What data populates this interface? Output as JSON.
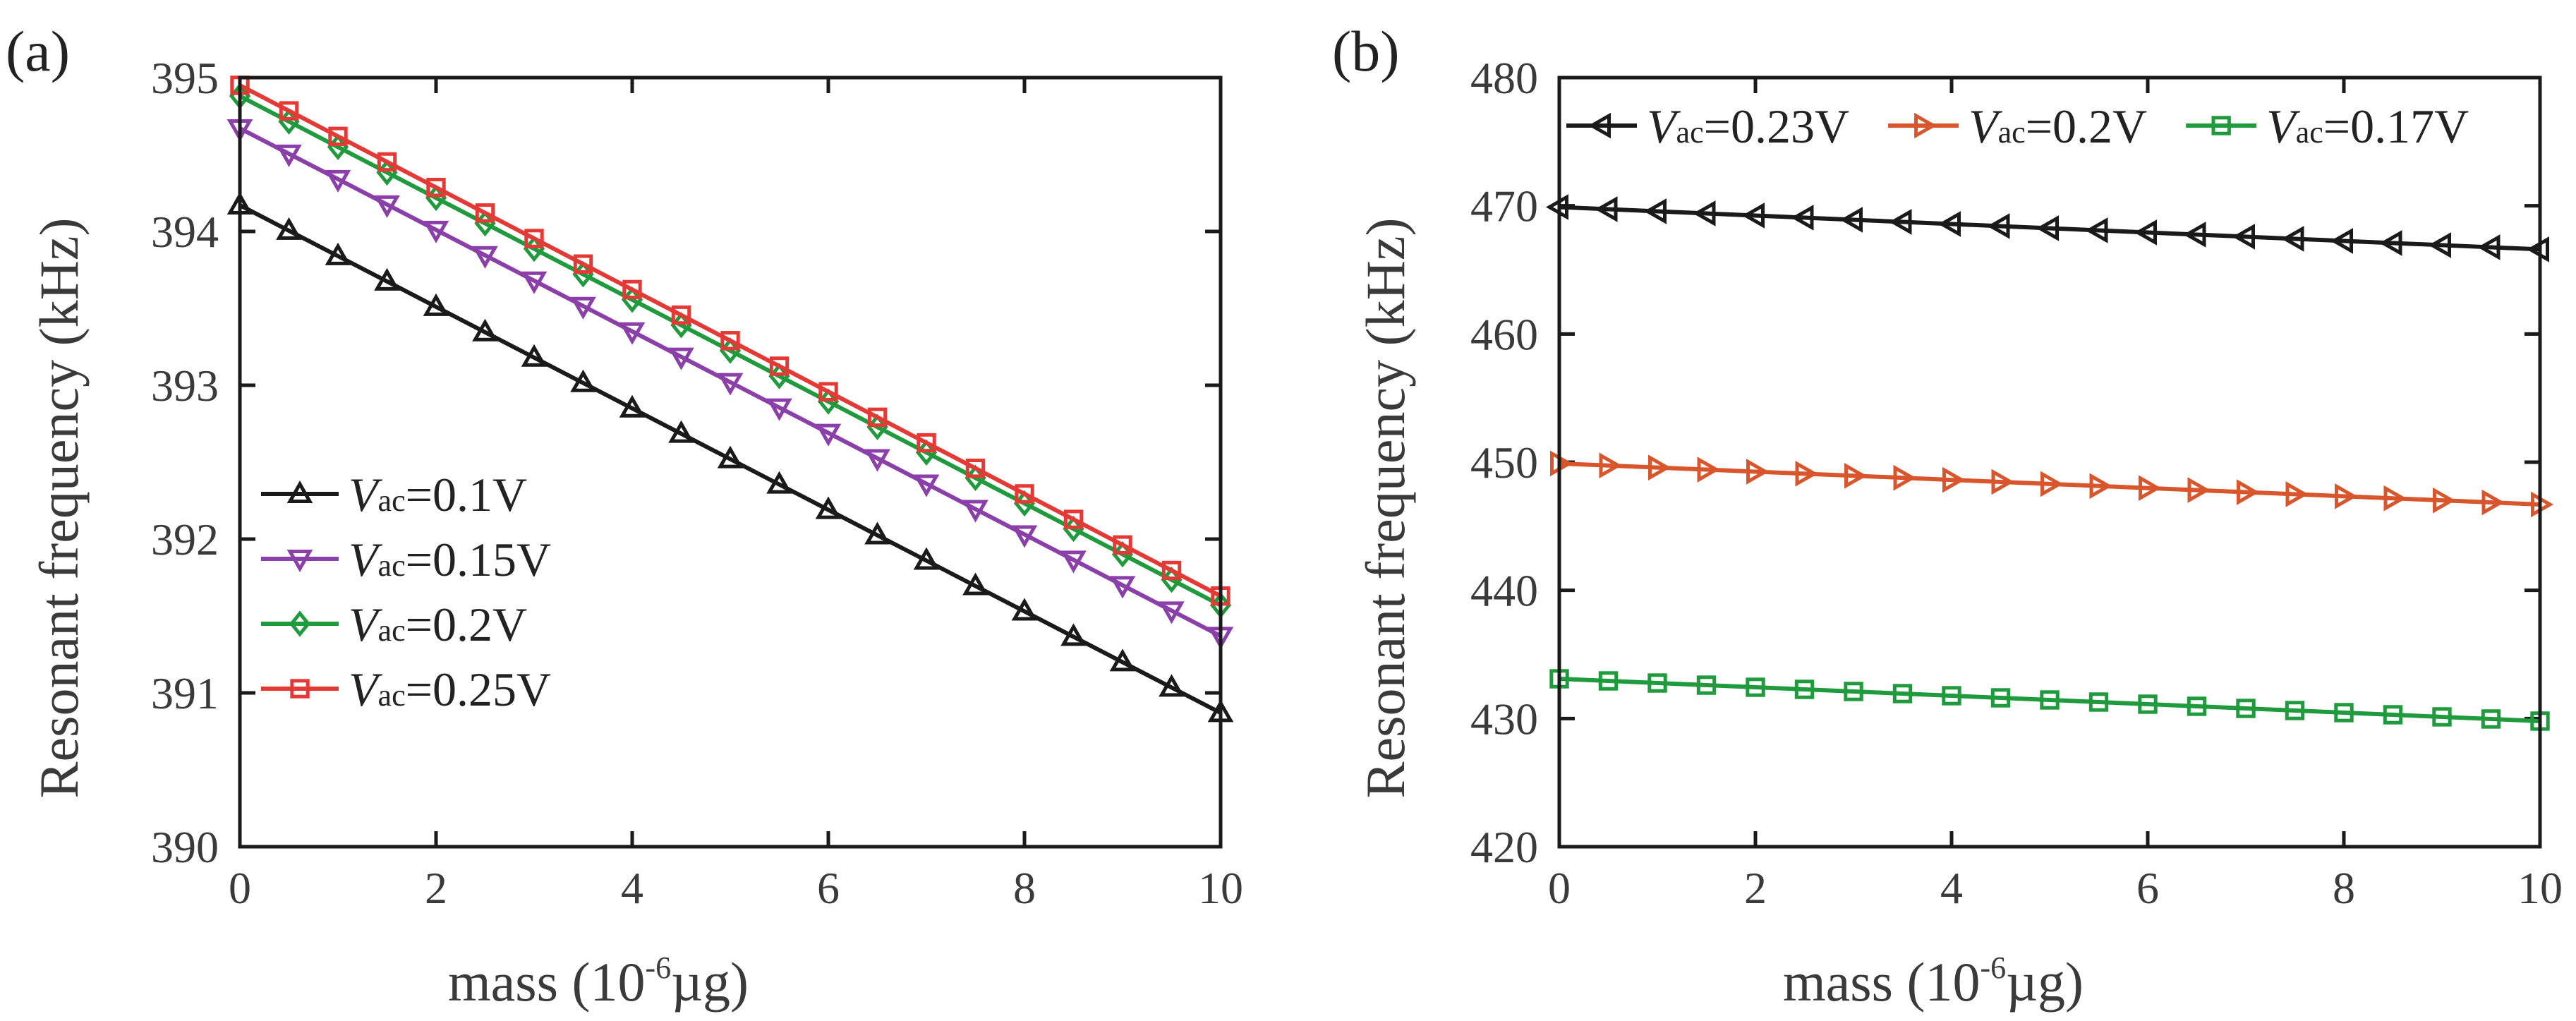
{
  "chart_data": [
    {
      "panel_label": "(a)",
      "type": "line",
      "xlabel_pre": "mass (10",
      "xlabel_sup": "-6",
      "xlabel_post": "µg)",
      "ylabel": "Resonant frequency (kHz)",
      "xlim": [
        0,
        10
      ],
      "ylim": [
        390,
        395
      ],
      "xticks": [
        0,
        2,
        4,
        6,
        8,
        10
      ],
      "yticks": [
        390,
        391,
        392,
        393,
        394,
        395
      ],
      "legend_position": "lower-left",
      "series": [
        {
          "name": "Vac=0.1V",
          "symbol": "V",
          "sub": "ac",
          "value_text": "=0.1V",
          "color": "#1a1a1a",
          "marker": "triangle-up",
          "x_start": 0,
          "x_end": 10,
          "x_step": 0.5,
          "y_start": 394.17,
          "y_end": 390.87
        },
        {
          "name": "Vac=0.15V",
          "symbol": "V",
          "sub": "ac",
          "value_text": "=0.15V",
          "color": "#8b3fa8",
          "marker": "triangle-down",
          "x_start": 0,
          "x_end": 10,
          "x_step": 0.5,
          "y_start": 394.67,
          "y_end": 391.37
        },
        {
          "name": "Vac=0.2V",
          "symbol": "V",
          "sub": "ac",
          "value_text": "=0.2V",
          "color": "#1f9a3c",
          "marker": "diamond",
          "x_start": 0,
          "x_end": 10,
          "x_step": 0.5,
          "y_start": 394.88,
          "y_end": 391.57
        },
        {
          "name": "Vac=0.25V",
          "symbol": "V",
          "sub": "ac",
          "value_text": "=0.25V",
          "color": "#e53935",
          "marker": "square",
          "x_start": 0,
          "x_end": 10,
          "x_step": 0.5,
          "y_start": 394.95,
          "y_end": 391.63
        }
      ]
    },
    {
      "panel_label": "(b)",
      "type": "line",
      "xlabel_pre": "mass (10",
      "xlabel_sup": "-6",
      "xlabel_post": "µg)",
      "ylabel": "Resonant frequency (kHz)",
      "xlim": [
        0,
        10
      ],
      "ylim": [
        420,
        480
      ],
      "xticks": [
        0,
        2,
        4,
        6,
        8,
        10
      ],
      "yticks": [
        420,
        430,
        440,
        450,
        460,
        470,
        480
      ],
      "legend_position": "top",
      "series": [
        {
          "name": "Vac=0.23V",
          "symbol": "V",
          "sub": "ac",
          "value_text": "=0.23V",
          "color": "#1a1a1a",
          "marker": "triangle-left",
          "x_start": 0,
          "x_end": 10,
          "x_step": 0.5,
          "y_start": 469.9,
          "y_end": 466.6
        },
        {
          "name": "Vac=0.2V",
          "symbol": "V",
          "sub": "ac",
          "value_text": "=0.2V",
          "color": "#d9552b",
          "marker": "triangle-right",
          "x_start": 0,
          "x_end": 10,
          "x_step": 0.5,
          "y_start": 449.9,
          "y_end": 446.7
        },
        {
          "name": "Vac=0.17V",
          "symbol": "V",
          "sub": "ac",
          "value_text": "=0.17V",
          "color": "#1f9a3c",
          "marker": "square",
          "x_start": 0,
          "x_end": 10,
          "x_step": 0.5,
          "y_start": 433.1,
          "y_end": 429.8
        }
      ]
    }
  ]
}
